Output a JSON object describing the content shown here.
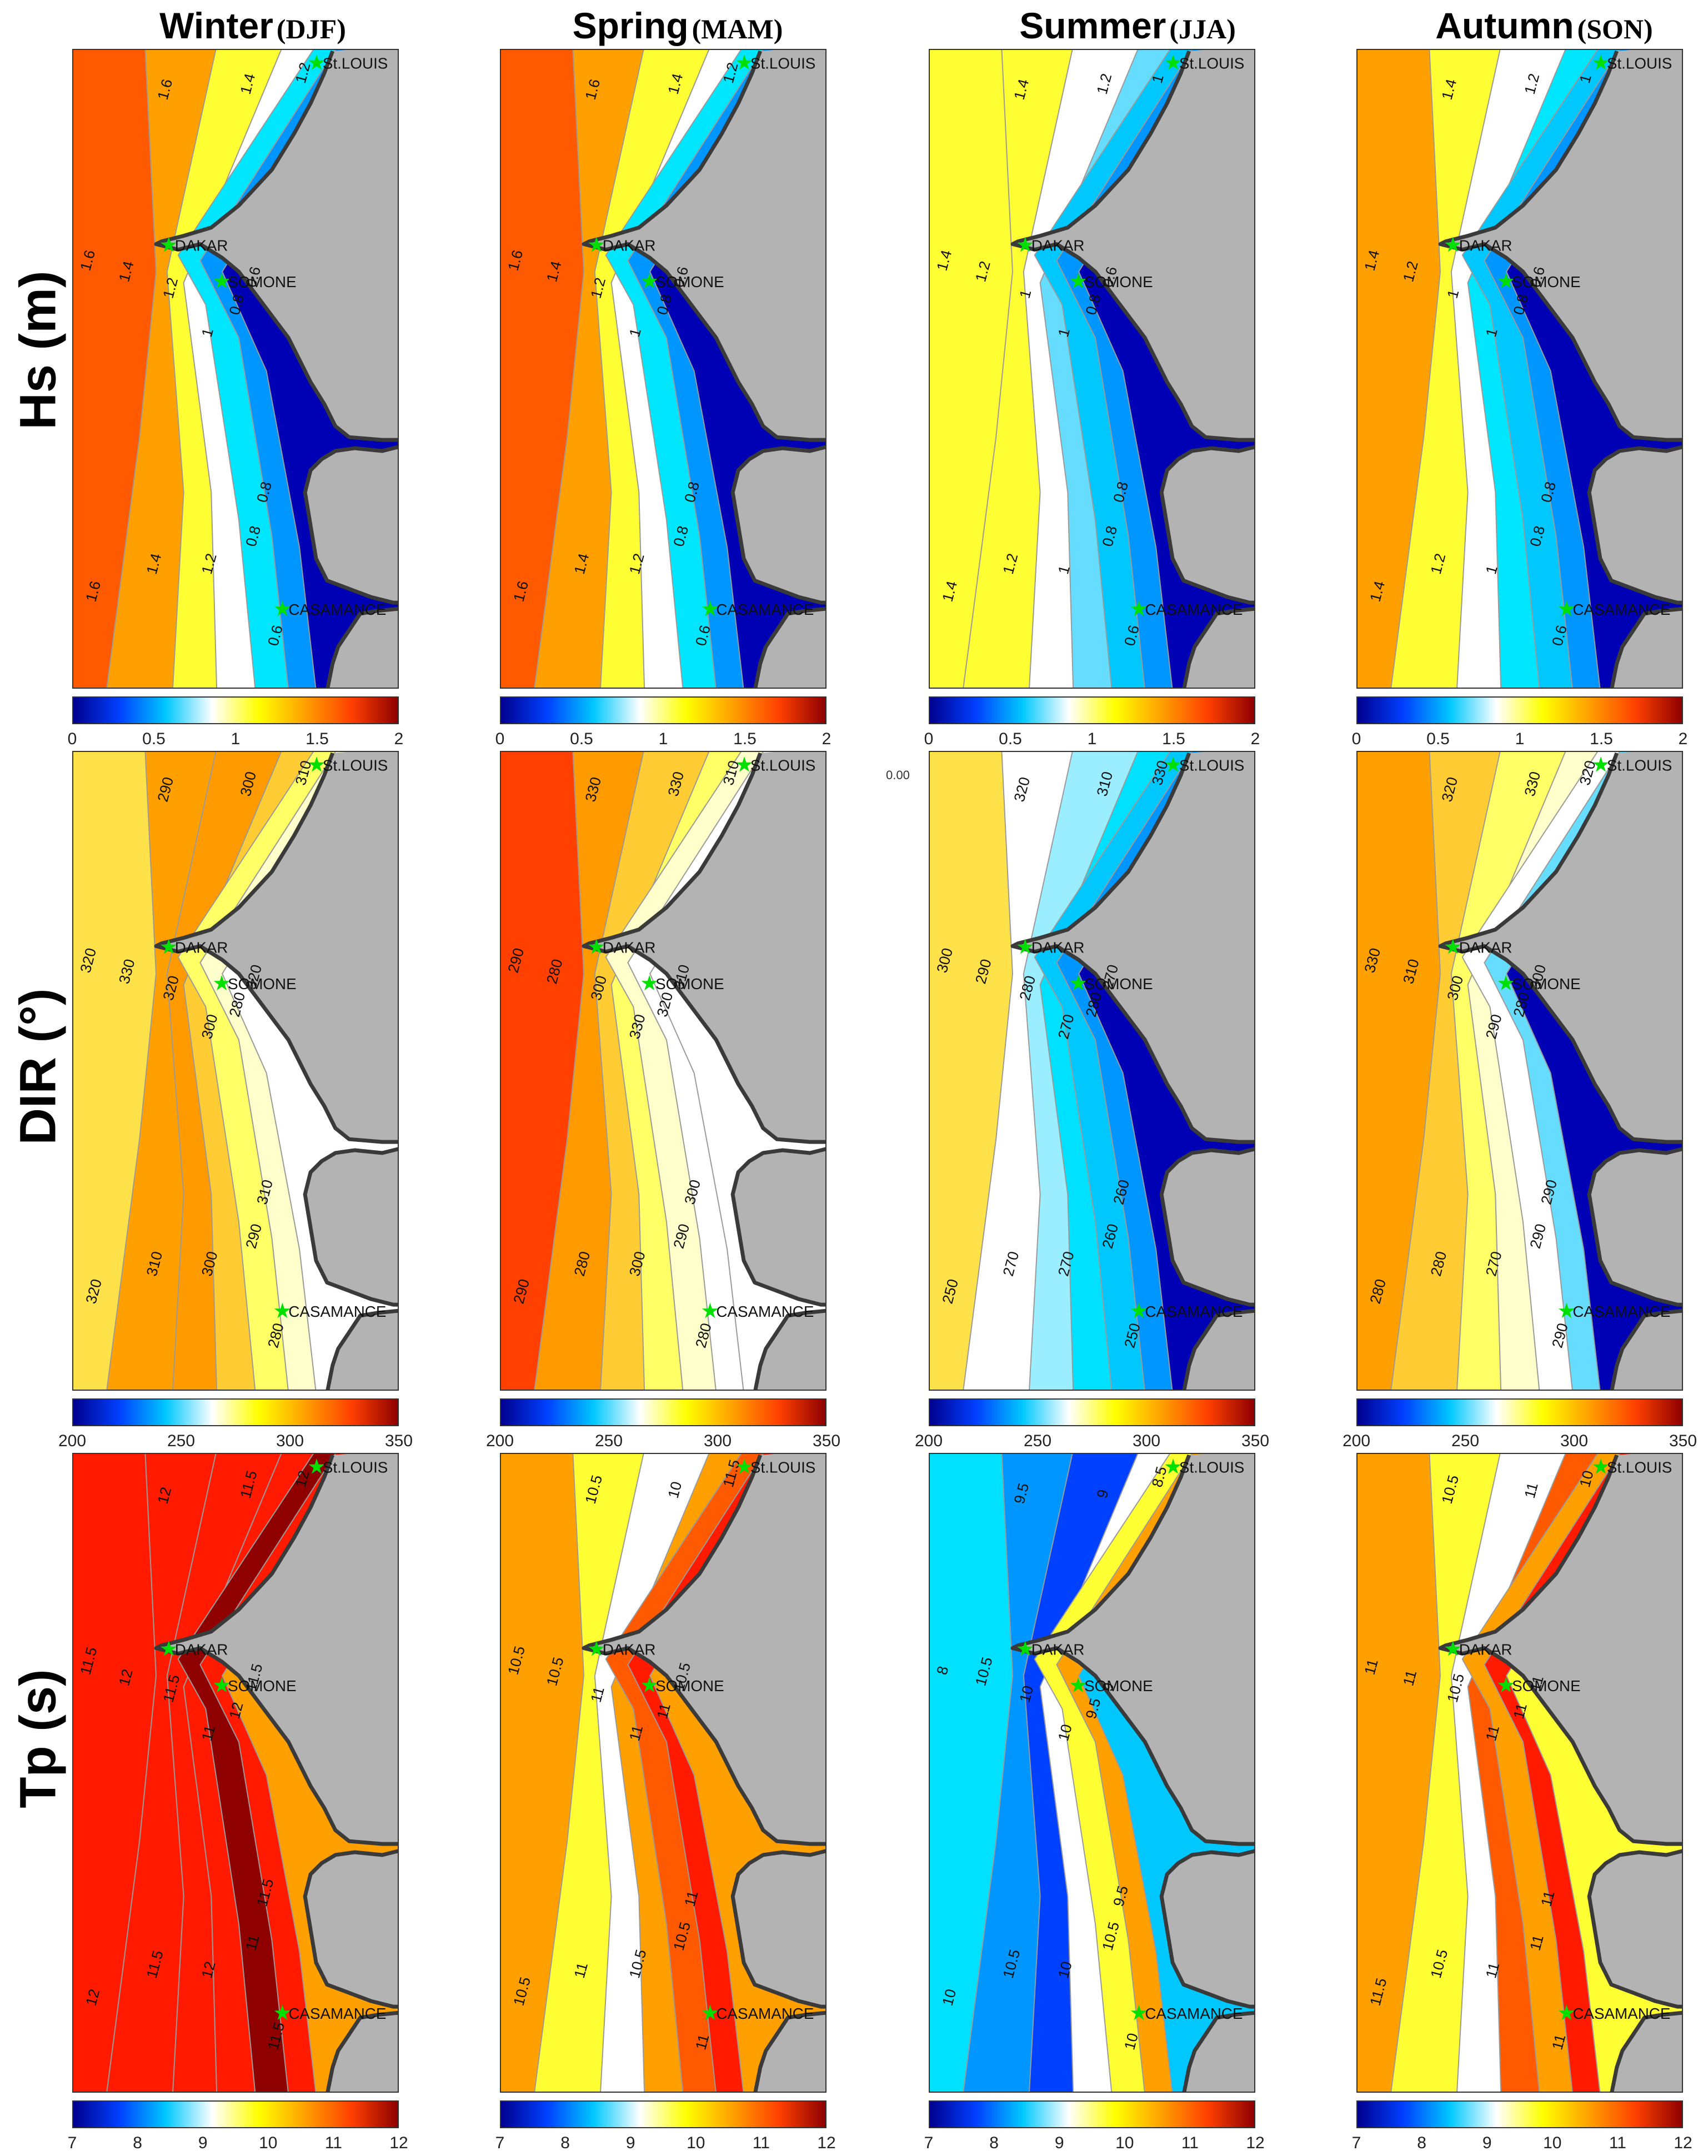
{
  "figure": {
    "columns": [
      {
        "season": "Winter",
        "abbr": "(DJF)"
      },
      {
        "season": "Spring",
        "abbr": "(MAM)"
      },
      {
        "season": "Summer",
        "abbr": "(JJA)"
      },
      {
        "season": "Autumn",
        "abbr": "(SON)"
      }
    ],
    "rows": [
      {
        "label": "Hs (m)",
        "ticks": [
          "0",
          "0.5",
          "1",
          "1.5",
          "2"
        ]
      },
      {
        "label": "DIR (°)",
        "ticks": [
          "200",
          "250",
          "300",
          "350"
        ]
      },
      {
        "label": "Tp (s)",
        "ticks": [
          "7",
          "8",
          "9",
          "10",
          "11",
          "12"
        ]
      }
    ],
    "places": {
      "st_louis": "St.LOUIS",
      "dakar": "DAKAR",
      "somone": "SOMONE",
      "casamance": "CASAMANCE"
    },
    "stray_label": "0.00",
    "colormap": [
      "#00008f",
      "#0040ff",
      "#00c8ff",
      "#ffffff",
      "#ffff00",
      "#ffa000",
      "#ff4000",
      "#8f0000"
    ],
    "land_color": "#b3b3b3",
    "marker_color": "#00e000",
    "panels": [
      [
        {
          "bands": [
            "#ff5a00",
            "#ffa000",
            "#ffff33",
            "#ffffff",
            "#00e6ff",
            "#0096ff",
            "#0000b4"
          ],
          "labels": [
            "1.6",
            "1.4",
            "1.2",
            "1.6",
            "1.4",
            "1.2",
            "1",
            "0.8",
            "0.6",
            "0.8",
            "1.6",
            "1.4",
            "1.2",
            "0.8",
            "0.6"
          ]
        },
        {
          "bands": [
            "#ff5a00",
            "#ffa000",
            "#ffff33",
            "#ffffff",
            "#00e6ff",
            "#0096ff",
            "#0000b4"
          ],
          "labels": [
            "1.6",
            "1.4",
            "1.2",
            "1.6",
            "1.4",
            "1.2",
            "1",
            "0.8",
            "0.6",
            "0.8",
            "1.6",
            "1.4",
            "1.2",
            "0.8",
            "0.6"
          ]
        },
        {
          "bands": [
            "#ffff33",
            "#ffff33",
            "#ffffff",
            "#66ddff",
            "#00c8ff",
            "#0096ff",
            "#0000b4"
          ],
          "labels": [
            "1.4",
            "1.2",
            "1",
            "1.4",
            "1.2",
            "1",
            "1",
            "0.8",
            "0.6",
            "0.8",
            "1.4",
            "1.2",
            "1",
            "0.8",
            "0.6"
          ]
        },
        {
          "bands": [
            "#ffa000",
            "#ffff33",
            "#ffffff",
            "#00e6ff",
            "#00c8ff",
            "#0096ff",
            "#0000b4"
          ],
          "labels": [
            "1.4",
            "1.2",
            "1",
            "1.4",
            "1.2",
            "1",
            "1",
            "0.8",
            "0.6",
            "0.8",
            "1.4",
            "1.2",
            "1",
            "0.8",
            "0.6"
          ]
        }
      ],
      [
        {
          "bands": [
            "#ffe24a",
            "#ffa000",
            "#ff9a00",
            "#ffcc33",
            "#ffff66",
            "#ffffcc",
            "#ffffff"
          ],
          "labels": [
            "290",
            "300",
            "310",
            "320",
            "330",
            "320",
            "300",
            "280",
            "320",
            "310",
            "320",
            "310",
            "300",
            "290",
            "280"
          ]
        },
        {
          "bands": [
            "#ff4000",
            "#ff9a00",
            "#ffcc33",
            "#ffff66",
            "#ffffcc",
            "#ffffff",
            "#ffffff"
          ],
          "labels": [
            "330",
            "330",
            "310",
            "290",
            "280",
            "300",
            "330",
            "320",
            "310",
            "300",
            "290",
            "280",
            "300",
            "290",
            "280"
          ]
        },
        {
          "bands": [
            "#ffe24a",
            "#ffffff",
            "#9aeeff",
            "#00e0ff",
            "#00c8ff",
            "#0096ff",
            "#0000b4"
          ],
          "labels": [
            "320",
            "310",
            "330",
            "300",
            "290",
            "280",
            "270",
            "280",
            "270",
            "260",
            "250",
            "270",
            "270",
            "260",
            "250"
          ]
        },
        {
          "bands": [
            "#ffa000",
            "#ffcc33",
            "#ffff66",
            "#ffffcc",
            "#ffffff",
            "#66ddff",
            "#0000b4"
          ],
          "labels": [
            "320",
            "330",
            "320",
            "330",
            "310",
            "300",
            "290",
            "280",
            "300",
            "290",
            "280",
            "280",
            "270",
            "290",
            "290"
          ]
        }
      ],
      [
        {
          "bands": [
            "#ff1a00",
            "#ff1a00",
            "#ff1a00",
            "#ff1a00",
            "#8f0000",
            "#ff1a00",
            "#ffa000"
          ],
          "labels": [
            "12",
            "11.5",
            "12",
            "11.5",
            "12",
            "11.5",
            "11",
            "12",
            "11.5",
            "11.5",
            "12",
            "11.5",
            "12",
            "11",
            "11.5"
          ]
        },
        {
          "bands": [
            "#ffa000",
            "#ffff33",
            "#ffffff",
            "#ffa000",
            "#ff5a00",
            "#ff1a00",
            "#ffa000"
          ],
          "labels": [
            "10.5",
            "10",
            "11.5",
            "10.5",
            "10.5",
            "11",
            "11",
            "11",
            "10.5",
            "11",
            "10.5",
            "11",
            "10.5",
            "10.5",
            "11"
          ]
        },
        {
          "bands": [
            "#00e0ff",
            "#0096ff",
            "#0040ff",
            "#ffffff",
            "#ffff33",
            "#ffa000",
            "#00c8ff"
          ],
          "labels": [
            "9.5",
            "9",
            "8.5",
            "8",
            "10.5",
            "10",
            "10",
            "9.5",
            "9",
            "9.5",
            "10",
            "10.5",
            "10",
            "10.5",
            "10"
          ]
        },
        {
          "bands": [
            "#ffa000",
            "#ffff33",
            "#ffffff",
            "#ff5a00",
            "#ffa000",
            "#ff1a00",
            "#ffff33"
          ],
          "labels": [
            "10.5",
            "11",
            "10",
            "11",
            "11",
            "10.5",
            "11",
            "11",
            "11",
            "11",
            "11.5",
            "10.5",
            "11",
            "11",
            "11"
          ]
        }
      ]
    ]
  }
}
